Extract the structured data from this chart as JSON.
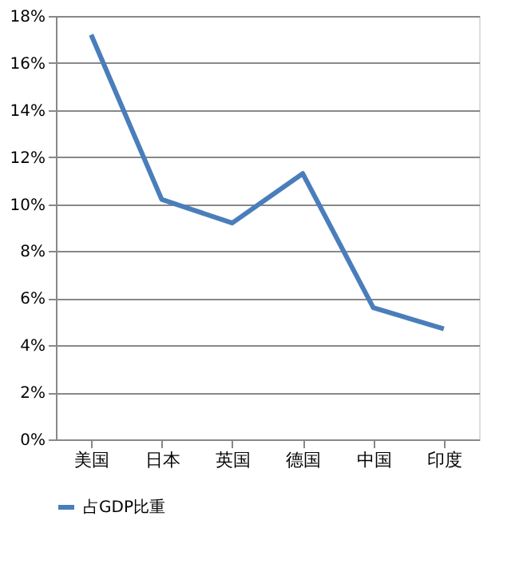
{
  "chart_data": {
    "type": "line",
    "categories": [
      "美国",
      "日本",
      "英国",
      "德国",
      "中国",
      "印度"
    ],
    "series": [
      {
        "name": "占GDP比重",
        "color": "#4a7ebb",
        "values": [
          17.2,
          10.2,
          9.2,
          11.3,
          5.6,
          4.7
        ]
      }
    ],
    "ylim": [
      0,
      18
    ],
    "yticks": [
      {
        "value": 0,
        "label": "0%"
      },
      {
        "value": 2,
        "label": "2%"
      },
      {
        "value": 4,
        "label": "4%"
      },
      {
        "value": 6,
        "label": "6%"
      },
      {
        "value": 8,
        "label": "8%"
      },
      {
        "value": 10,
        "label": "10%"
      },
      {
        "value": 12,
        "label": "12%"
      },
      {
        "value": 14,
        "label": "14%"
      },
      {
        "value": 16,
        "label": "16%"
      },
      {
        "value": 18,
        "label": "18%"
      }
    ],
    "grid": "y",
    "legend": "bottom",
    "marker": "none",
    "line_style": "solid"
  }
}
